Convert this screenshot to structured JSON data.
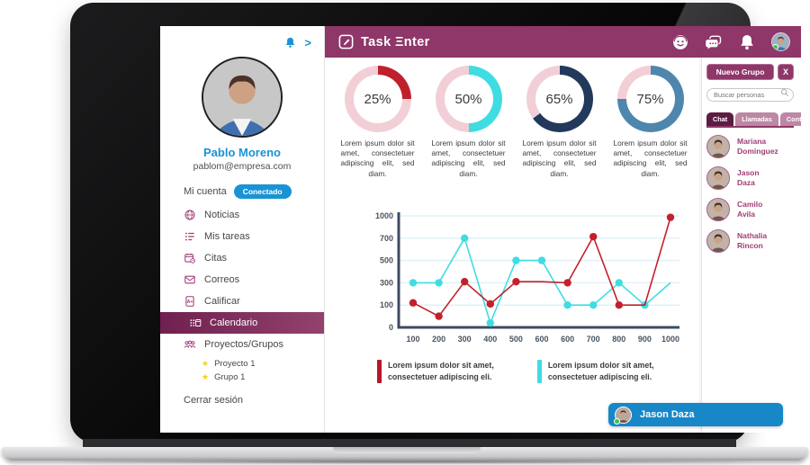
{
  "brand": {
    "title": "Task Ξnter"
  },
  "colors": {
    "primary": "#8e3768",
    "primary_dark": "#5e1b44",
    "accent_blue": "#1a93d4",
    "donut_track": "#f2cfd6",
    "red": "#c0202e",
    "cyan": "#3fdde2",
    "navy": "#22395c",
    "steel": "#4e86ad",
    "axis": "#3d4b63",
    "grid": "#e0f1f7"
  },
  "topbar": {
    "icons": [
      "support-icon",
      "chat-icon",
      "bell-icon"
    ],
    "avatar": "PM"
  },
  "sidebar": {
    "bell_icon": "bell-icon",
    "collapse_chevron": ">",
    "user": {
      "name": "Pablo Moreno",
      "email": "pablom@empresa.com"
    },
    "account_label": "Mi cuenta",
    "status_badge": "Conectado",
    "items": [
      {
        "label": "Noticias",
        "icon": "news-icon",
        "active": false
      },
      {
        "label": "Mis tareas",
        "icon": "tasks-icon",
        "active": false
      },
      {
        "label": "Citas",
        "icon": "appointments-icon",
        "active": false
      },
      {
        "label": "Correos",
        "icon": "mail-icon",
        "active": false
      },
      {
        "label": "Calificar",
        "icon": "grade-icon",
        "active": false
      },
      {
        "label": "Calendario",
        "icon": "calendar-icon",
        "active": true
      },
      {
        "label": "Proyectos/Grupos",
        "icon": "groups-icon",
        "active": false
      }
    ],
    "subitems": [
      "Proyecto 1",
      "Grupo 1"
    ],
    "logout_label": "Cerrar sesión"
  },
  "donuts": [
    {
      "percent": 25,
      "label": "25%",
      "color": "#c0202e",
      "text": "Lorem ipsum dolor sit amet, consectetuer adipiscing elit, sed diam."
    },
    {
      "percent": 50,
      "label": "50%",
      "color": "#3fdde2",
      "text": "Lorem ipsum dolor sit amet, consectetuer adipiscing elit, sed diam."
    },
    {
      "percent": 65,
      "label": "65%",
      "color": "#22395c",
      "text": "Lorem ipsum dolor sit amet, consectetuer adipiscing elit, sed diam."
    },
    {
      "percent": 75,
      "label": "75%",
      "color": "#4e86ad",
      "text": "Lorem ipsum dolor sit amet, consectetuer adipiscing elit, sed diam."
    }
  ],
  "chart_data": {
    "type": "line",
    "x_ticks": [
      "100",
      "200",
      "300",
      "400",
      "500",
      "600",
      "600",
      "700",
      "800",
      "900",
      "1000"
    ],
    "y_ticks": [
      "1000",
      "700",
      "500",
      "300",
      "100",
      "0"
    ],
    "y_scale_breakpoints": [
      0,
      100,
      300,
      500,
      700,
      1000
    ],
    "grid": true,
    "series": [
      {
        "name": "serie-roja",
        "color": "#c4202b",
        "values": [
          120,
          50,
          310,
          110,
          310,
          310,
          300,
          720,
          100,
          100,
          980
        ],
        "markers": [
          1,
          1,
          1,
          1,
          1,
          0,
          1,
          1,
          1,
          0,
          1
        ]
      },
      {
        "name": "serie-cian",
        "color": "#3fdde2",
        "values": [
          300,
          300,
          700,
          20,
          500,
          500,
          100,
          100,
          300,
          100,
          300
        ],
        "markers": [
          1,
          1,
          1,
          1,
          1,
          1,
          1,
          1,
          1,
          1,
          0
        ]
      }
    ],
    "legend": [
      {
        "color": "#b5182b",
        "text": "Lorem ipsum dolor sit amet,\nconsectetuer adipiscing eli."
      },
      {
        "color": "#3fdde2",
        "text": "Lorem ipsum dolor sit amet,\nconsectetuer adipiscing eli."
      }
    ],
    "legend_position": "bottom"
  },
  "right_panel": {
    "new_group_button": "Nuevo Grupo",
    "close_button": "X",
    "search_placeholder": "Buscar personas",
    "tabs": [
      {
        "label": "Chat",
        "active": true
      },
      {
        "label": "Llamadas",
        "active": false
      },
      {
        "label": "Contactos",
        "active": false
      }
    ],
    "contacts": [
      {
        "name": "Mariana\nDominguez"
      },
      {
        "name": "Jason\nDaza"
      },
      {
        "name": "Camilo\nAvila"
      },
      {
        "name": "Nathalia\nRincon"
      }
    ]
  },
  "chat_bar": {
    "name": "Jason Daza"
  }
}
